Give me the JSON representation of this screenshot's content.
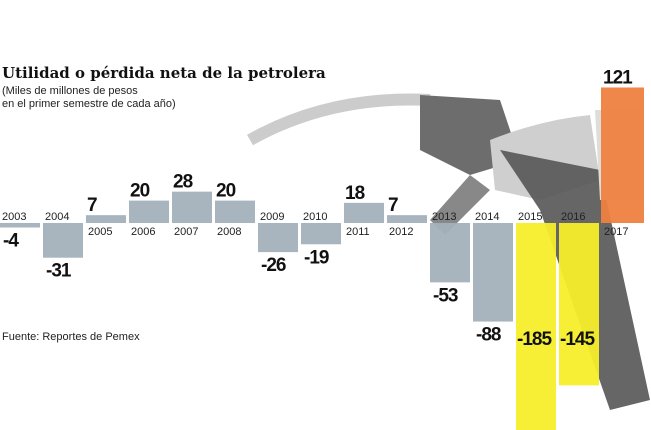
{
  "chart_data": {
    "type": "bar",
    "title": "Utilidad o pérdida neta de la petrolera",
    "subtitle_lines": [
      "(Miles de millones de pesos",
      "en el primer semestre de cada año)"
    ],
    "source": "Fuente: Reportes de Pemex",
    "categories": [
      "2003",
      "2004",
      "2005",
      "2006",
      "2007",
      "2008",
      "2009",
      "2010",
      "2011",
      "2012",
      "2013",
      "2014",
      "2015",
      "2016",
      "2017"
    ],
    "values": [
      -4,
      -31,
      7,
      20,
      28,
      20,
      -26,
      -19,
      18,
      7,
      -53,
      -88,
      -185,
      -145,
      121
    ],
    "colors": {
      "default": "#a3b1bb",
      "2015": "#f7ee2a",
      "2016": "#f7ee2a",
      "2017": "#ef8140"
    },
    "background_image": "gas-pump-nozzle-hand",
    "grid": false
  }
}
